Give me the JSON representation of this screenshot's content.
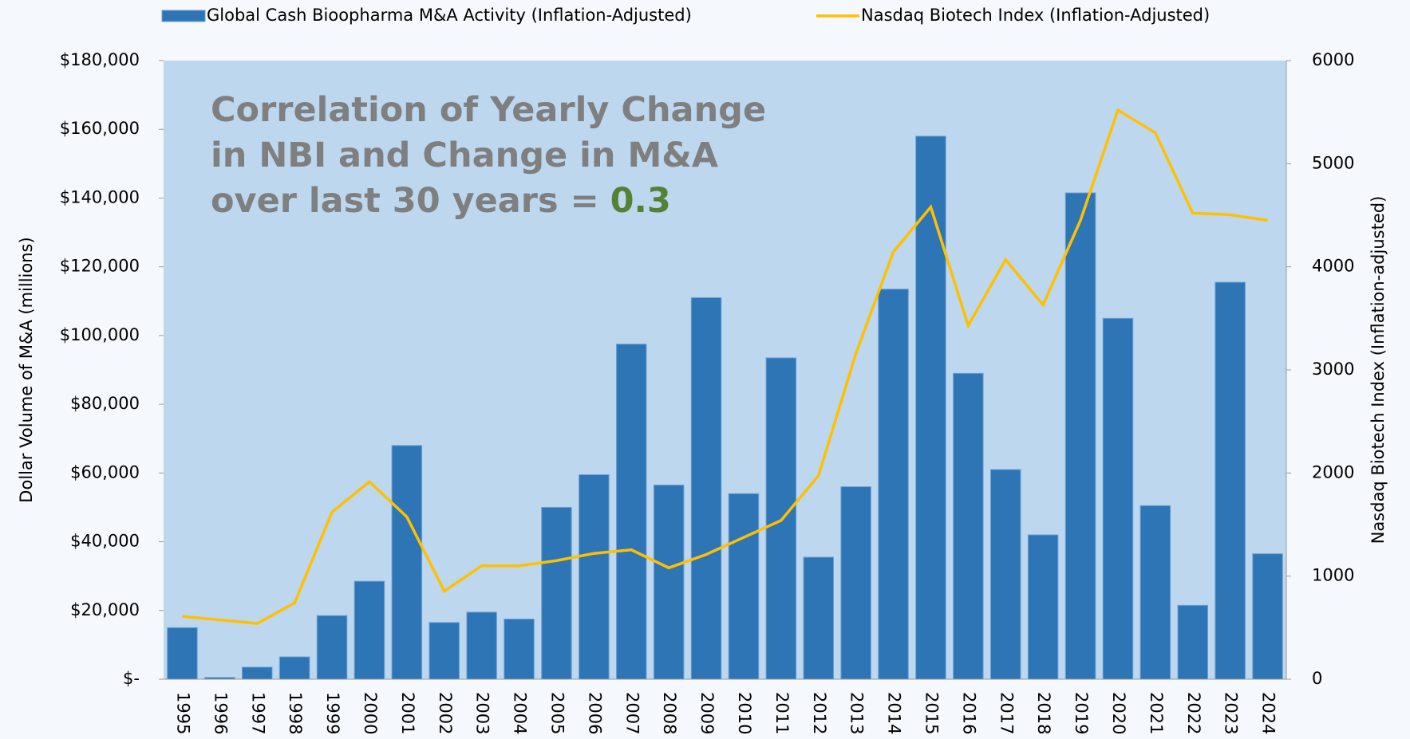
{
  "chart_data": {
    "type": "bar_line",
    "annotation": [
      "Correlation of Yearly Change",
      "in NBI and Change in M&A",
      "over last 30 years ="
    ],
    "annotation_value": 0.3,
    "ylabel": "Dollar Volume of M&A (millions)",
    "y2label": "Nasdaq Biotech Index (Inflation-adjusted)",
    "categories": [
      "1995",
      "1996",
      "1997",
      "1998",
      "1999",
      "2000",
      "2001",
      "2002",
      "2003",
      "2004",
      "2005",
      "2006",
      "2007",
      "2008",
      "2009",
      "2010",
      "2011",
      "2012",
      "2013",
      "2014",
      "2015",
      "2016",
      "2017",
      "2018",
      "2019",
      "2020",
      "2021",
      "2022",
      "2023",
      "2024"
    ],
    "series": [
      {
        "name": "Global Cash Bioopharma M&A Activity (Inflation-Adjusted)",
        "type": "bar",
        "color": "#2e75b6",
        "values": [
          15000,
          500,
          3500,
          6500,
          18500,
          28500,
          68000,
          16500,
          19500,
          17500,
          50000,
          59500,
          97500,
          56500,
          111000,
          54000,
          93500,
          35500,
          56000,
          113500,
          158000,
          89000,
          61000,
          42000,
          141500,
          105000,
          50500,
          21500,
          115500,
          36500
        ]
      },
      {
        "name": "Nasdaq Biotech Index (Inflation-Adjusted)",
        "type": "line",
        "axis": "y2",
        "color": "#ffc000",
        "values": [
          610,
          575,
          540,
          740,
          1620,
          1915,
          1575,
          855,
          1100,
          1100,
          1150,
          1220,
          1255,
          1080,
          1210,
          1375,
          1540,
          1975,
          3160,
          4145,
          4580,
          3430,
          4070,
          3630,
          4450,
          5520,
          5300,
          4520,
          4505,
          4450
        ]
      }
    ],
    "ylim": [
      0,
      180000
    ],
    "yticks": [
      {
        "value": 0,
        "label": "$-"
      },
      {
        "value": 20000,
        "label": "$20,000"
      },
      {
        "value": 40000,
        "label": "$40,000"
      },
      {
        "value": 60000,
        "label": "$60,000"
      },
      {
        "value": 80000,
        "label": "$80,000"
      },
      {
        "value": 100000,
        "label": "$100,000"
      },
      {
        "value": 120000,
        "label": "$120,000"
      },
      {
        "value": 140000,
        "label": "$140,000"
      },
      {
        "value": 160000,
        "label": "$160,000"
      },
      {
        "value": 180000,
        "label": "$180,000"
      }
    ],
    "y2lim": [
      0,
      6000
    ],
    "y2ticks": [
      0,
      1000,
      2000,
      3000,
      4000,
      5000,
      6000
    ],
    "plot_background": "#bdd7ee"
  }
}
